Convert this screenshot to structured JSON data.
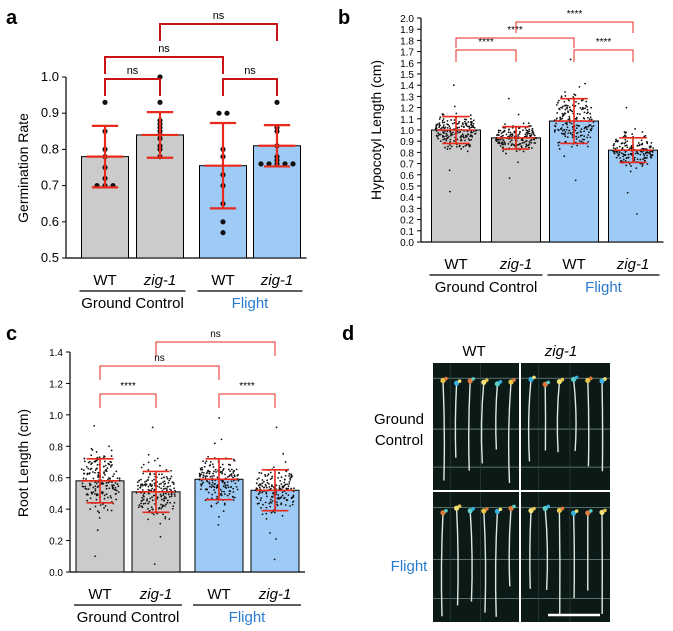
{
  "palette": {
    "ground": "#cbcbcb",
    "flight": "#9ecbf6",
    "error": "#e8291c",
    "bracket_a": "#c81414",
    "bracket_bc": "#e8291c",
    "flight_text": "#2a7ad0",
    "points": "#111111"
  },
  "panel_letters": {
    "a": "a",
    "b": "b",
    "c": "c",
    "d": "d"
  },
  "groups": {
    "ground": "Ground Control",
    "flight": "Flight"
  },
  "chart_data": [
    {
      "panel": "a",
      "type": "bar",
      "ylabel": "Germination Rate",
      "ylim": [
        0.5,
        1.0
      ],
      "yticks": [
        "0.5",
        "0.6",
        "0.7",
        "0.8",
        "0.9",
        "1.0"
      ],
      "categories": [
        "WT",
        "zig-1",
        "WT",
        "zig-1"
      ],
      "group_labels": [
        "Ground Control",
        "Flight"
      ],
      "values": [
        0.78,
        0.84,
        0.755,
        0.81
      ],
      "error": [
        0.085,
        0.063,
        0.118,
        0.057
      ],
      "points": [
        [
          0.93,
          0.85,
          0.8,
          0.78,
          0.75,
          0.72,
          0.7,
          0.7,
          0.7
        ],
        [
          1.0,
          0.93,
          0.88,
          0.87,
          0.86,
          0.85,
          0.84,
          0.83,
          0.81,
          0.8,
          0.78
        ],
        [
          0.9,
          0.9,
          0.8,
          0.78,
          0.73,
          0.7,
          0.65,
          0.6,
          0.57
        ],
        [
          0.93,
          0.86,
          0.85,
          0.81,
          0.78,
          0.77,
          0.76,
          0.76,
          0.76,
          0.76,
          0.76
        ]
      ],
      "comparisons": [
        {
          "from": 0,
          "to": 1,
          "label": "ns"
        },
        {
          "from": 2,
          "to": 3,
          "label": "ns"
        },
        {
          "from": 0,
          "to": 2,
          "label": "ns"
        },
        {
          "from": 1,
          "to": 3,
          "label": "ns"
        }
      ]
    },
    {
      "panel": "b",
      "type": "bar",
      "ylabel": "Hypocotyl Length (cm)",
      "ylim": [
        0.0,
        2.0
      ],
      "yticks": [
        "0.0",
        "0.1",
        "0.2",
        "0.3",
        "0.4",
        "0.5",
        "0.6",
        "0.7",
        "0.8",
        "0.9",
        "1.0",
        "1.1",
        "1.2",
        "1.3",
        "1.4",
        "1.5",
        "1.6",
        "1.7",
        "1.8",
        "1.9",
        "2.0"
      ],
      "categories": [
        "WT",
        "zig-1",
        "WT",
        "zig-1"
      ],
      "group_labels": [
        "Ground Control",
        "Flight"
      ],
      "values": [
        1.0,
        0.93,
        1.08,
        0.82
      ],
      "error": [
        0.12,
        0.1,
        0.2,
        0.11
      ],
      "point_range": [
        [
          0.45,
          1.4
        ],
        [
          0.57,
          1.28
        ],
        [
          0.55,
          1.63
        ],
        [
          0.25,
          1.2
        ]
      ],
      "comparisons": [
        {
          "from": 0,
          "to": 1,
          "label": "****"
        },
        {
          "from": 2,
          "to": 3,
          "label": "****"
        },
        {
          "from": 0,
          "to": 2,
          "label": "****"
        },
        {
          "from": 1,
          "to": 3,
          "label": "****"
        }
      ]
    },
    {
      "panel": "c",
      "type": "bar",
      "ylabel": "Root Length (cm)",
      "ylim": [
        0.0,
        1.4
      ],
      "yticks": [
        "0.0",
        "0.2",
        "0.4",
        "0.6",
        "0.8",
        "1.0",
        "1.2",
        "1.4"
      ],
      "categories": [
        "WT",
        "zig-1",
        "WT",
        "zig-1"
      ],
      "group_labels": [
        "Ground Control",
        "Flight"
      ],
      "values": [
        0.58,
        0.51,
        0.59,
        0.52
      ],
      "error": [
        0.14,
        0.13,
        0.13,
        0.13
      ],
      "point_range": [
        [
          0.1,
          0.93
        ],
        [
          0.05,
          0.92
        ],
        [
          0.3,
          0.98
        ],
        [
          0.08,
          0.92
        ]
      ],
      "comparisons": [
        {
          "from": 0,
          "to": 1,
          "label": "****"
        },
        {
          "from": 2,
          "to": 3,
          "label": "****"
        },
        {
          "from": 0,
          "to": 2,
          "label": "ns"
        },
        {
          "from": 1,
          "to": 3,
          "label": "ns"
        }
      ]
    }
  ],
  "photo_panel": {
    "columns": [
      "WT",
      "zig-1"
    ],
    "rows": [
      "Ground\nControl",
      "Flight"
    ]
  }
}
